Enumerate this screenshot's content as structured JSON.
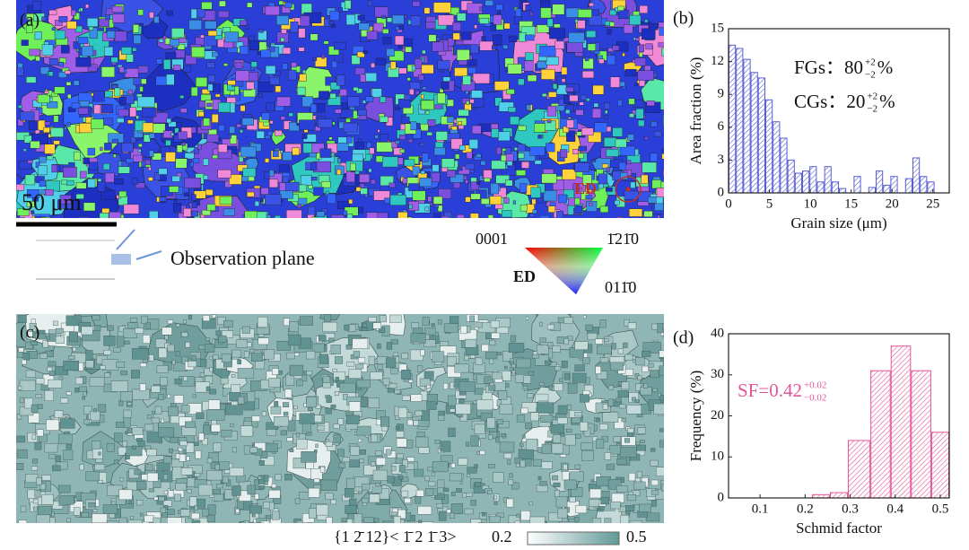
{
  "figure": {
    "panel_labels": [
      "(a)",
      "(b)",
      "(c)",
      "(d)"
    ],
    "scale_bar": "50 μm",
    "map_direction": "ED",
    "observation": "Observation plane",
    "ipf": {
      "corner_a": "0001",
      "corner_b": "1̄21̄0",
      "corner_c": "011̄0",
      "direction": "ED"
    },
    "colorbar": {
      "plane": "{1 2̄ 12}< 1̄ 2 1̄ 3>",
      "min": "0.2",
      "max": "0.5"
    }
  },
  "chart_data": [
    {
      "type": "histogram",
      "ylabel": "Area fraction (%)",
      "xlabel": "Grain size (μm)",
      "color": "#5a5fd0",
      "bins": [
        0,
        0.9,
        1.8,
        2.7,
        3.6,
        4.5,
        5.4,
        6.3,
        7.2,
        8.1,
        9,
        9.9,
        10.8,
        11.7,
        12.6,
        13.5,
        14.4,
        15.3,
        16.2,
        17.1,
        18,
        18.9,
        19.8,
        20.7,
        21.6,
        22.5,
        23.4,
        24.3,
        25.2,
        26.1
      ],
      "values": [
        13.5,
        13.2,
        12.2,
        11.0,
        10.5,
        8.5,
        6.5,
        5.0,
        3.0,
        1.8,
        2.0,
        2.4,
        1.0,
        2.4,
        1.0,
        0.4,
        0.0,
        1.5,
        0.0,
        0.5,
        2.0,
        0.7,
        1.5,
        0.0,
        1.3,
        3.2,
        1.5,
        1.0,
        0.0
      ],
      "xlim": [
        0,
        27
      ],
      "xticks": [
        0,
        5,
        10,
        15,
        20,
        25
      ],
      "ylim": [
        0,
        15
      ],
      "yticks": [
        0,
        3,
        6,
        9,
        12,
        15
      ],
      "annotations": [
        {
          "text": "FGs：80",
          "sup": "+2",
          "sub": "−2",
          "unit": "%",
          "color": "#111111"
        },
        {
          "text": "CGs：20",
          "sup": "+2",
          "sub": "−2",
          "unit": "%",
          "color": "#111111"
        }
      ]
    },
    {
      "type": "histogram",
      "ylabel": "Frequency (%)",
      "xlabel": "Schmid factor",
      "color": "#e2559a",
      "bins": [
        0.215,
        0.255,
        0.295,
        0.345,
        0.39,
        0.435,
        0.48,
        0.52
      ],
      "values": [
        0.8,
        1.3,
        14,
        31,
        37,
        31,
        16
      ],
      "xlim": [
        0.03,
        0.52
      ],
      "xticks": [
        0.1,
        0.2,
        0.3,
        0.4,
        0.5
      ],
      "ylim": [
        0,
        40
      ],
      "yticks": [
        0,
        10,
        20,
        30,
        40
      ],
      "annotations": [
        {
          "text": "SF=0.42",
          "sup": "+0.02",
          "sub": "−0.02",
          "color": "#e2559a"
        }
      ]
    }
  ]
}
